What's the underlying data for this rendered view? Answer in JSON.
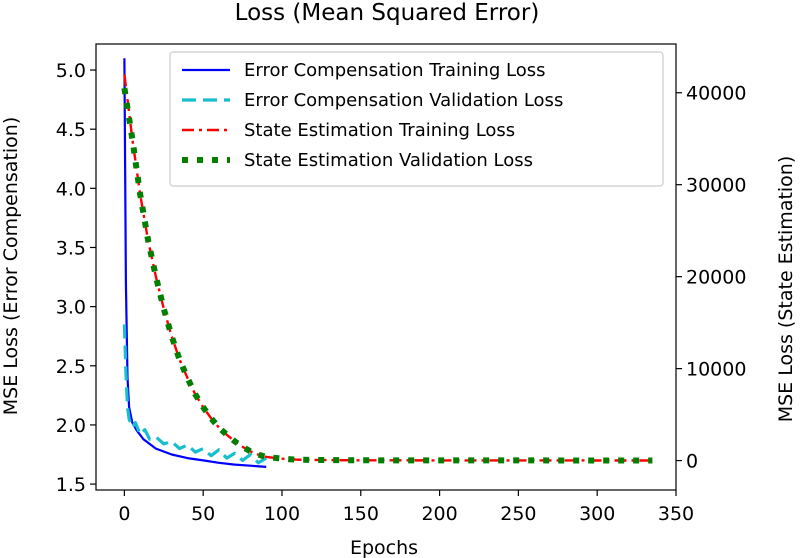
{
  "chart_data": {
    "type": "line",
    "title": "Loss (Mean Squared Error)",
    "xlabel": "Epochs",
    "ylabel_left": "MSE Loss (Error Compensation)",
    "ylabel_right": "MSE Loss (State Estimation)",
    "xlim": [
      -18,
      350
    ],
    "ylim_left": [
      1.45,
      5.22
    ],
    "ylim_right": [
      -3200,
      45300
    ],
    "x_ticks": [
      0,
      50,
      100,
      150,
      200,
      250,
      300,
      350
    ],
    "x_tick_labels": [
      "0",
      "50",
      "100",
      "150",
      "200",
      "250",
      "300",
      "350"
    ],
    "y_left_ticks": [
      1.5,
      2.0,
      2.5,
      3.0,
      3.5,
      4.0,
      4.5,
      5.0
    ],
    "y_left_tick_labels": [
      "1.5",
      "2.0",
      "2.5",
      "3.0",
      "3.5",
      "4.0",
      "4.5",
      "5.0"
    ],
    "y_right_ticks": [
      0,
      10000,
      20000,
      30000,
      40000
    ],
    "y_right_tick_labels": [
      "0",
      "10000",
      "20000",
      "30000",
      "40000"
    ],
    "legend_position": "top-right",
    "series": [
      {
        "name": "Error Compensation Training Loss",
        "axis": "left",
        "color": "#0000ff",
        "style": "solid",
        "x": [
          0,
          1,
          2,
          3,
          5,
          8,
          12,
          20,
          30,
          40,
          50,
          60,
          70,
          80,
          90
        ],
        "y": [
          5.1,
          3.2,
          2.4,
          2.15,
          2.02,
          1.95,
          1.88,
          1.8,
          1.75,
          1.72,
          1.7,
          1.68,
          1.665,
          1.655,
          1.645
        ]
      },
      {
        "name": "Error Compensation Validation Loss",
        "axis": "left",
        "color": "#17becf",
        "style": "dashed",
        "x": [
          0,
          1,
          2,
          3,
          5,
          7,
          10,
          13,
          16,
          20,
          25,
          30,
          35,
          40,
          45,
          50,
          55,
          60,
          65,
          70,
          75,
          80,
          85,
          90
        ],
        "y": [
          2.85,
          2.45,
          2.15,
          2.05,
          1.98,
          2.02,
          1.92,
          1.96,
          1.88,
          1.9,
          1.84,
          1.86,
          1.8,
          1.83,
          1.77,
          1.8,
          1.74,
          1.79,
          1.72,
          1.76,
          1.7,
          1.75,
          1.68,
          1.72
        ]
      },
      {
        "name": "State Estimation Training Loss",
        "axis": "right",
        "color": "#ff0000",
        "style": "dashdot",
        "x": [
          0,
          5,
          10,
          15,
          20,
          25,
          30,
          35,
          40,
          45,
          50,
          55,
          60,
          65,
          70,
          75,
          80,
          85,
          90,
          100,
          110,
          130,
          150,
          200,
          250,
          300,
          335
        ],
        "y": [
          42000,
          35000,
          29000,
          24000,
          20000,
          16500,
          13500,
          11000,
          9000,
          7200,
          5800,
          4600,
          3600,
          2800,
          2100,
          1500,
          1000,
          650,
          400,
          200,
          100,
          50,
          30,
          20,
          15,
          12,
          10
        ]
      },
      {
        "name": "State Estimation Validation Loss",
        "axis": "right",
        "color": "#007f00",
        "style": "dotted",
        "x": [
          0,
          5,
          10,
          15,
          20,
          25,
          30,
          35,
          40,
          45,
          50,
          55,
          60,
          65,
          70,
          75,
          80,
          85,
          90,
          100,
          110,
          130,
          150,
          200,
          250,
          300,
          335
        ],
        "y": [
          40500,
          35000,
          29000,
          24000,
          20000,
          16500,
          13500,
          11000,
          9000,
          7200,
          5800,
          4600,
          3600,
          2800,
          2100,
          1500,
          1000,
          650,
          400,
          200,
          100,
          50,
          30,
          20,
          15,
          12,
          10
        ]
      }
    ]
  }
}
